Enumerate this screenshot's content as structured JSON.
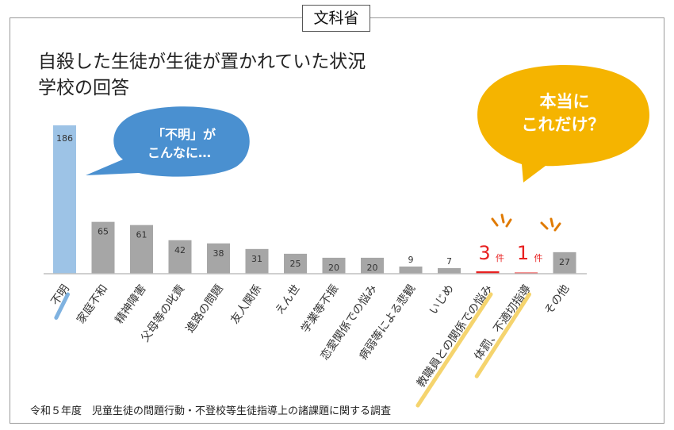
{
  "agency_tag": "文科省",
  "title_lines": [
    "自殺した生徒が生徒が置かれていた状況",
    "学校の回答"
  ],
  "source_note": "令和５年度　児童生徒の問題行動・不登校等生徒指導上の諸課題に関する調査",
  "bubble_left": {
    "lines": [
      "「不明」が",
      "こんなに…"
    ],
    "color": "#4a90d0"
  },
  "bubble_right": {
    "lines": [
      "本当に",
      "これだけ？"
    ],
    "color": "#f5b400"
  },
  "annotations": {
    "count_unit": "件",
    "highlight_color": "#f5d46e",
    "emphasis_color": "#e82020"
  },
  "chart_data": {
    "type": "bar",
    "title": "自殺した生徒が生徒が置かれていた状況 学校の回答",
    "xlabel": "",
    "ylabel": "",
    "ylim": [
      0,
      186
    ],
    "categories": [
      "不明",
      "家庭不和",
      "精神障害",
      "父母等の叱責",
      "進路の問題",
      "友人関係",
      "えん世",
      "学業等不振",
      "恋愛関係での悩み",
      "病弱等による悲観",
      "いじめ",
      "教職員との関係での悩み",
      "体罰、不適切指導",
      "その他"
    ],
    "values": [
      186,
      65,
      61,
      42,
      38,
      31,
      25,
      20,
      20,
      9,
      7,
      3,
      1,
      27
    ],
    "series_colors": {
      "default": "#a6a6a6",
      "unknown": "#9dc3e6",
      "emphasis": "#e82020"
    },
    "emphasized_categories": [
      "教職員との関係での悩み",
      "体罰、不適切指導"
    ],
    "highlighted_labels": [
      "不明",
      "教職員との関係での悩み",
      "体罰、不適切指導"
    ]
  }
}
